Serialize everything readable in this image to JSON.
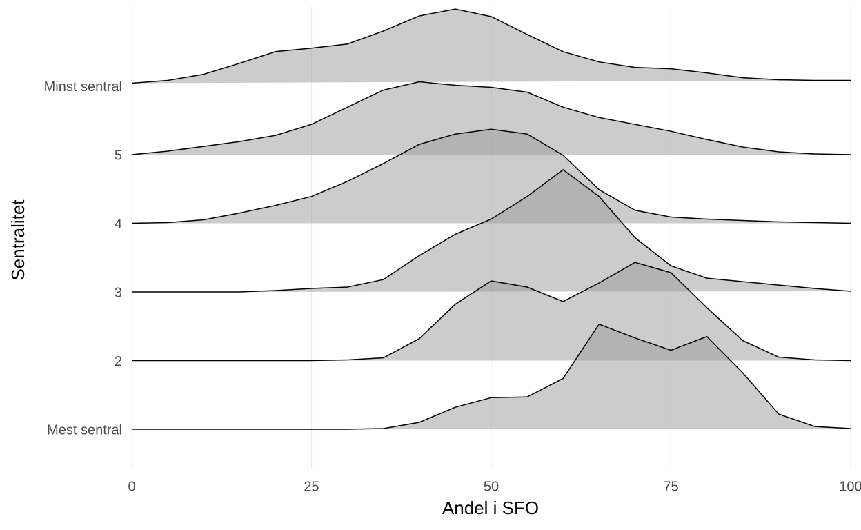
{
  "chart_data": {
    "type": "ridgeline",
    "x_label": "Andel i SFO",
    "y_label": "Sentralitet",
    "categories": [
      "Mest sentral",
      "2",
      "3",
      "4",
      "5",
      "Minst sentral"
    ],
    "x": [
      0,
      5,
      10,
      15,
      20,
      25,
      30,
      35,
      40,
      45,
      50,
      55,
      60,
      65,
      70,
      75,
      80,
      85,
      90,
      95,
      100
    ],
    "series": [
      {
        "name": "Mest sentral",
        "values": [
          0,
          0,
          0,
          0,
          0,
          0,
          0,
          0.01,
          0.1,
          0.32,
          0.46,
          0.47,
          0.74,
          1.53,
          1.33,
          1.15,
          1.35,
          0.82,
          0.22,
          0.04,
          0.01
        ]
      },
      {
        "name": "2",
        "values": [
          0,
          0,
          0,
          0,
          0,
          0,
          0.01,
          0.04,
          0.32,
          0.82,
          1.16,
          1.07,
          0.86,
          1.13,
          1.43,
          1.28,
          0.77,
          0.29,
          0.05,
          0.01,
          0
        ]
      },
      {
        "name": "3",
        "values": [
          0,
          0,
          0,
          0,
          0.02,
          0.05,
          0.07,
          0.18,
          0.53,
          0.84,
          1.06,
          1.39,
          1.78,
          1.39,
          0.79,
          0.38,
          0.2,
          0.15,
          0.1,
          0.05,
          0.01
        ]
      },
      {
        "name": "4",
        "values": [
          0,
          0.01,
          0.05,
          0.15,
          0.26,
          0.39,
          0.61,
          0.87,
          1.15,
          1.3,
          1.37,
          1.3,
          0.99,
          0.49,
          0.19,
          0.09,
          0.06,
          0.04,
          0.02,
          0.01,
          0
        ]
      },
      {
        "name": "5",
        "values": [
          0,
          0.05,
          0.12,
          0.19,
          0.28,
          0.44,
          0.69,
          0.94,
          1.06,
          1.01,
          0.98,
          0.91,
          0.69,
          0.54,
          0.44,
          0.34,
          0.22,
          0.11,
          0.04,
          0.01,
          0
        ]
      },
      {
        "name": "Minst sentral",
        "values": [
          0.04,
          0.08,
          0.17,
          0.33,
          0.5,
          0.55,
          0.61,
          0.8,
          1.02,
          1.12,
          1.01,
          0.75,
          0.5,
          0.35,
          0.27,
          0.25,
          0.19,
          0.12,
          0.09,
          0.08,
          0.08
        ]
      }
    ],
    "color": "#999999",
    "opacity": 0.5,
    "xlim": [
      0,
      100
    ],
    "xticks": [
      0,
      25,
      50,
      75,
      100
    ],
    "grid": true
  }
}
